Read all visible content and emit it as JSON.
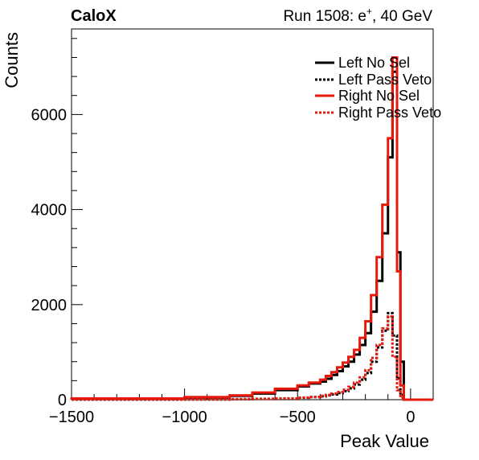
{
  "header": {
    "experiment": "CaloX",
    "run_info_prefix": "Run 1508: e",
    "run_info_superscript": "+",
    "run_info_suffix": ", 40 GeV"
  },
  "chart_data": {
    "type": "line",
    "subtype": "step-histogram",
    "xlabel": "Peak Value",
    "ylabel": "Counts",
    "xlim": [
      -1500,
      100
    ],
    "ylim": [
      0,
      7800
    ],
    "x_ticks": [
      -1500,
      -1000,
      -500,
      0
    ],
    "x_tick_labels": [
      "−1500",
      "−1000",
      "−500",
      "0"
    ],
    "y_ticks": [
      0,
      2000,
      4000,
      6000
    ],
    "y_tick_labels": [
      "0",
      "2000",
      "4000",
      "6000"
    ],
    "bin_edges": [
      -1500,
      -1000,
      -800,
      -700,
      -600,
      -500,
      -450,
      -400,
      -375,
      -350,
      -325,
      -300,
      -275,
      -250,
      -225,
      -200,
      -175,
      -150,
      -125,
      -100,
      -80,
      -60,
      -45,
      -30
    ],
    "legend_position": "top-right",
    "series": [
      {
        "name": "Left No Sel",
        "color": "#000000",
        "style": "solid",
        "values": [
          20,
          45,
          80,
          130,
          200,
          280,
          340,
          380,
          440,
          520,
          600,
          700,
          800,
          950,
          1150,
          1400,
          1850,
          2500,
          3500,
          5100,
          6900,
          3100,
          800
        ]
      },
      {
        "name": "Left Pass Veto",
        "color": "#000000",
        "style": "dotted",
        "values": [
          2,
          5,
          10,
          15,
          25,
          40,
          55,
          70,
          90,
          110,
          140,
          180,
          240,
          320,
          420,
          560,
          800,
          1100,
          1450,
          1820,
          1350,
          450,
          100
        ]
      },
      {
        "name": "Right No Sel",
        "color": "#e8190c",
        "style": "solid",
        "values": [
          25,
          55,
          90,
          150,
          230,
          300,
          360,
          420,
          500,
          580,
          680,
          780,
          900,
          1050,
          1300,
          1650,
          2200,
          3000,
          4100,
          5500,
          7200,
          2700,
          300
        ]
      },
      {
        "name": "Right Pass Veto",
        "color": "#e8190c",
        "style": "dotted",
        "values": [
          3,
          6,
          12,
          18,
          28,
          45,
          60,
          80,
          100,
          130,
          160,
          210,
          270,
          360,
          470,
          620,
          880,
          1150,
          1500,
          1750,
          900,
          200,
          40
        ]
      }
    ]
  }
}
